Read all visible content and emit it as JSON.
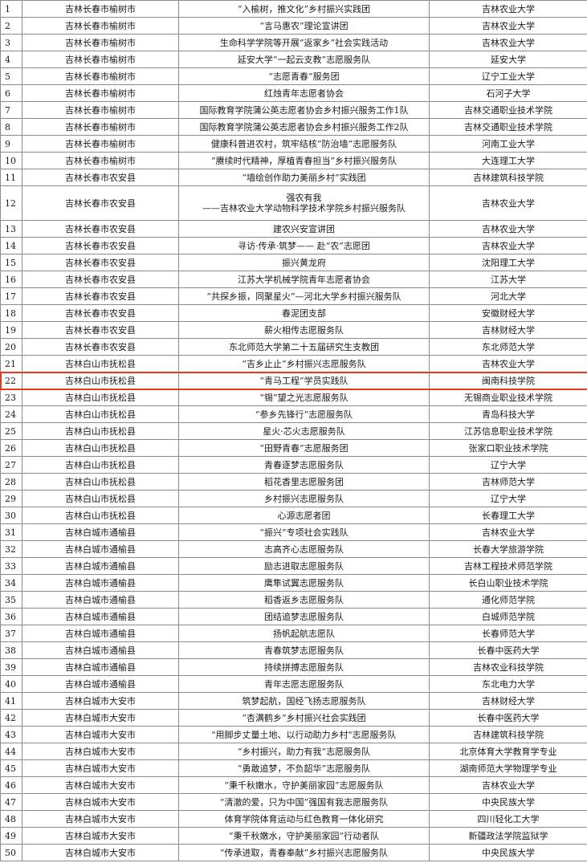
{
  "highlight_color": "#e8391c",
  "highlighted_row": 22,
  "rows": [
    {
      "no": "1",
      "location": "吉林长春市榆树市",
      "team": "“入榆树，推文化”乡村振兴实践团",
      "school": "吉林农业大学"
    },
    {
      "no": "2",
      "location": "吉林长春市榆树市",
      "team": "“言马惠农”理论宣讲团",
      "school": "吉林农业大学"
    },
    {
      "no": "3",
      "location": "吉林长春市榆树市",
      "team": "生命科学学院等开展“返家乡”社会实践活动",
      "school": "吉林农业大学"
    },
    {
      "no": "4",
      "location": "吉林长春市榆树市",
      "team": "延安大学“一起云支教”志愿服务队",
      "school": "延安大学"
    },
    {
      "no": "5",
      "location": "吉林长春市榆树市",
      "team": "“志愿青春”服务团",
      "school": "辽宁工业大学"
    },
    {
      "no": "6",
      "location": "吉林长春市榆树市",
      "team": "红烛青年志愿者协会",
      "school": "石河子大学"
    },
    {
      "no": "7",
      "location": "吉林长春市榆树市",
      "team": "国际教育学院蒲公英志愿者协会乡村振兴服务工作1队",
      "school": "吉林交通职业技术学院"
    },
    {
      "no": "8",
      "location": "吉林长春市榆树市",
      "team": "国际教育学院蒲公英志愿者协会乡村振兴服务工作2队",
      "school": "吉林交通职业技术学院"
    },
    {
      "no": "9",
      "location": "吉林长春市榆树市",
      "team": "健康科普进农村，筑牢结核“防治墙”志愿服务队",
      "school": "河南工业大学"
    },
    {
      "no": "10",
      "location": "吉林长春市榆树市",
      "team": "“赓续时代精神，厚植青春担当”乡村振兴服务队",
      "school": "大连理工大学"
    },
    {
      "no": "11",
      "location": "吉林长春市农安县",
      "team": "“墙绘创作助力美丽乡村”实践团",
      "school": "吉林建筑科技学院"
    },
    {
      "no": "12",
      "location": "吉林长春市农安县",
      "team": "强农有我",
      "team_sub": "——吉林农业大学动物科学技术学院乡村振兴服务队",
      "school": "吉林农业大学"
    },
    {
      "no": "13",
      "location": "吉林长春市农安县",
      "team": "建农兴安宣讲团",
      "school": "吉林农业大学"
    },
    {
      "no": "14",
      "location": "吉林长春市农安县",
      "team": "寻访·传承·筑梦—— 赴“农”志愿团",
      "school": "吉林农业大学"
    },
    {
      "no": "15",
      "location": "吉林长春市农安县",
      "team": "振兴黄龙府",
      "school": "沈阳理工大学"
    },
    {
      "no": "16",
      "location": "吉林长春市农安县",
      "team": "江苏大学机械学院青年志愿者协会",
      "school": "江苏大学"
    },
    {
      "no": "17",
      "location": "吉林长春市农安县",
      "team": "“共探乡振，同聚星火”—河北大学乡村振兴服务队",
      "school": "河北大学"
    },
    {
      "no": "18",
      "location": "吉林长春市农安县",
      "team": "春泥团支部",
      "school": "安徽财经大学"
    },
    {
      "no": "19",
      "location": "吉林长春市农安县",
      "team": "薪火相传志愿服务队",
      "school": "吉林财经大学"
    },
    {
      "no": "20",
      "location": "吉林长春市农安县",
      "team": "东北师范大学第二十五届研究生支教团",
      "school": "东北师范大学"
    },
    {
      "no": "21",
      "location": "吉林白山市抚松县",
      "team": "“吉乡止止”乡村振兴志愿服务队",
      "school": "吉林农业大学"
    },
    {
      "no": "22",
      "location": "吉林白山市抚松县",
      "team": "“青马工程”学员实践队",
      "school": "闽南科技学院"
    },
    {
      "no": "23",
      "location": "吉林白山市抚松县",
      "team": "“锡”望之光志愿服务队",
      "school": "无锡商业职业技术学院"
    },
    {
      "no": "24",
      "location": "吉林白山市抚松县",
      "team": "“参乡先锋行”志愿服务队",
      "school": "青岛科技大学"
    },
    {
      "no": "25",
      "location": "吉林白山市抚松县",
      "team": "星火·芯火志愿服务队",
      "school": "江苏信息职业技术学院"
    },
    {
      "no": "26",
      "location": "吉林白山市抚松县",
      "team": "“田野青春”志愿服务团",
      "school": "张家口职业技术学院"
    },
    {
      "no": "27",
      "location": "吉林白山市抚松县",
      "team": "青春逐梦志愿服务队",
      "school": "辽宁大学"
    },
    {
      "no": "28",
      "location": "吉林白山市抚松县",
      "team": "稻花香里志愿服务团",
      "school": "吉林师范大学"
    },
    {
      "no": "29",
      "location": "吉林白山市抚松县",
      "team": "乡村振兴志愿服务队",
      "school": "辽宁大学"
    },
    {
      "no": "30",
      "location": "吉林白山市抚松县",
      "team": "心源志愿者团",
      "school": "长春理工大学"
    },
    {
      "no": "31",
      "location": "吉林白城市通榆县",
      "team": "“振兴”专项社会实践队",
      "school": "吉林农业大学"
    },
    {
      "no": "32",
      "location": "吉林白城市通榆县",
      "team": "志高齐心志愿服务队",
      "school": "长春大学旅游学院"
    },
    {
      "no": "33",
      "location": "吉林白城市通榆县",
      "team": "励志进取志愿服务队",
      "school": "吉林工程技术师范学院"
    },
    {
      "no": "34",
      "location": "吉林白城市通榆县",
      "team": "鹰隼试翼志愿服务队",
      "school": "长白山职业技术学院"
    },
    {
      "no": "35",
      "location": "吉林白城市通榆县",
      "team": "稻香返乡志愿服务队",
      "school": "通化师范学院"
    },
    {
      "no": "36",
      "location": "吉林白城市通榆县",
      "team": "团结追梦志愿服务队",
      "school": "白城师范学院"
    },
    {
      "no": "37",
      "location": "吉林白城市通榆县",
      "team": "扬帆起航志愿队",
      "school": "长春师范大学"
    },
    {
      "no": "38",
      "location": "吉林白城市通榆县",
      "team": "青春筑梦志愿服务队",
      "school": "长春中医药大学"
    },
    {
      "no": "39",
      "location": "吉林白城市通榆县",
      "team": "持续拼搏志愿服务队",
      "school": "吉林农业科技学院"
    },
    {
      "no": "40",
      "location": "吉林白城市通榆县",
      "team": "青年志愿志愿服务队",
      "school": "东北电力大学"
    },
    {
      "no": "41",
      "location": "吉林白城市大安市",
      "team": "筑梦起航，国经飞扬志愿服务队",
      "school": "吉林财经大学"
    },
    {
      "no": "42",
      "location": "吉林白城市大安市",
      "team": "“杏满鹤乡”乡村振兴社会实践团",
      "school": "长春中医药大学"
    },
    {
      "no": "43",
      "location": "吉林白城市大安市",
      "team": "\"用脚步丈量土地、以行动助力乡村\"志愿服务队",
      "school": "吉林建筑科技学院"
    },
    {
      "no": "44",
      "location": "吉林白城市大安市",
      "team": "“乡村振兴，助力有我”志愿服务队",
      "school": "北京体育大学教育学专业"
    },
    {
      "no": "45",
      "location": "吉林白城市大安市",
      "team": "“勇敢追梦，不负韶华”志愿服务队",
      "school": "湖南师范大学物理学专业"
    },
    {
      "no": "46",
      "location": "吉林白城市大安市",
      "team": "“秉千秋嫩水，守护美丽家园”志愿服务队",
      "school": "吉林农业大学"
    },
    {
      "no": "47",
      "location": "吉林白城市大安市",
      "team": "“清澈的爱，只为中国”强国有我志愿服务队",
      "school": "中央民族大学"
    },
    {
      "no": "48",
      "location": "吉林白城市大安市",
      "team": "体育学院体育运动与红色教育一体化研究",
      "school": "四川轻化工大学"
    },
    {
      "no": "49",
      "location": "吉林白城市大安市",
      "team": "“秉千秋嫩水，守护美丽家园”行动者队",
      "school": "新疆政法学院监狱学"
    },
    {
      "no": "50",
      "location": "吉林白城市大安市",
      "team": "“传承进取，青春奉献”乡村振兴志愿服务队",
      "school": "中央民族大学"
    }
  ]
}
